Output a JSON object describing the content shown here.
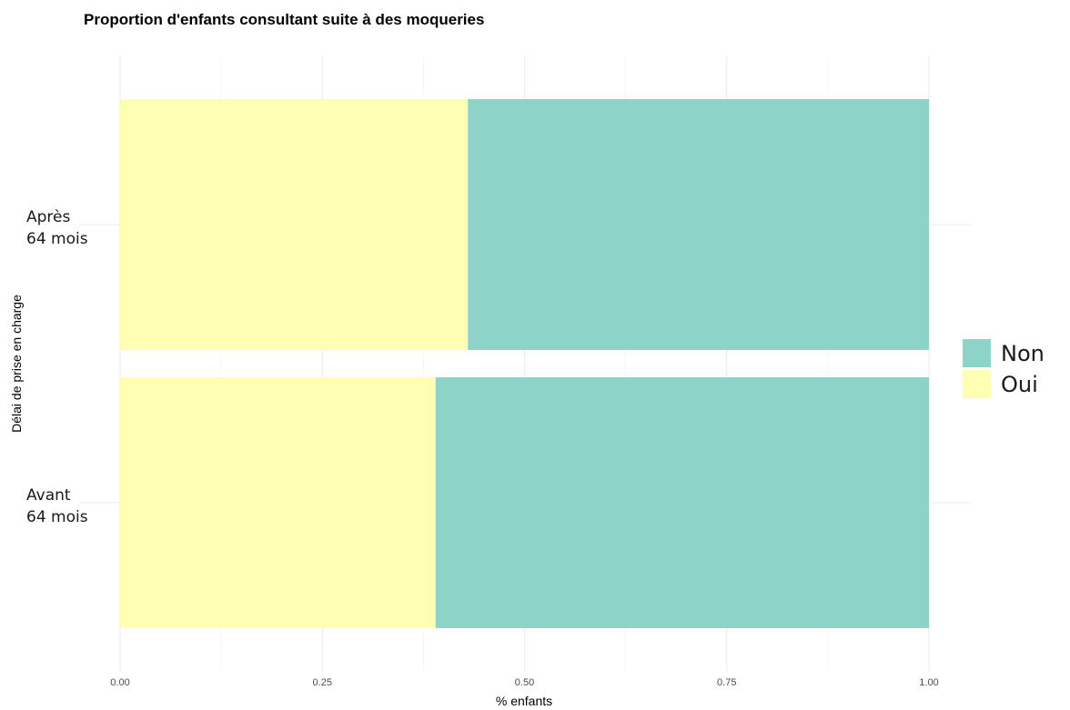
{
  "chart_data": {
    "type": "bar",
    "orientation": "horizontal",
    "stacked": true,
    "title": "Proportion d'enfants consultant suite à des moqueries",
    "xlabel": "% enfants",
    "ylabel": "Délai de prise en charge",
    "xlim": [
      0,
      1
    ],
    "x_ticks": [
      "0.00",
      "0.25",
      "0.50",
      "0.75",
      "1.00"
    ],
    "categories": [
      {
        "lines": [
          "Après",
          "64 mois"
        ]
      },
      {
        "lines": [
          "Avant",
          "64 mois"
        ]
      }
    ],
    "series": [
      {
        "name": "Oui",
        "color": "#ffffb3",
        "values": [
          0.43,
          0.39
        ]
      },
      {
        "name": "Non",
        "color": "#8dd3c7",
        "values": [
          0.57,
          0.61
        ]
      }
    ],
    "legend": {
      "position": "right",
      "entries": [
        {
          "label": "Non",
          "color": "#8dd3c7"
        },
        {
          "label": "Oui",
          "color": "#ffffb3"
        }
      ]
    },
    "grid": true
  }
}
